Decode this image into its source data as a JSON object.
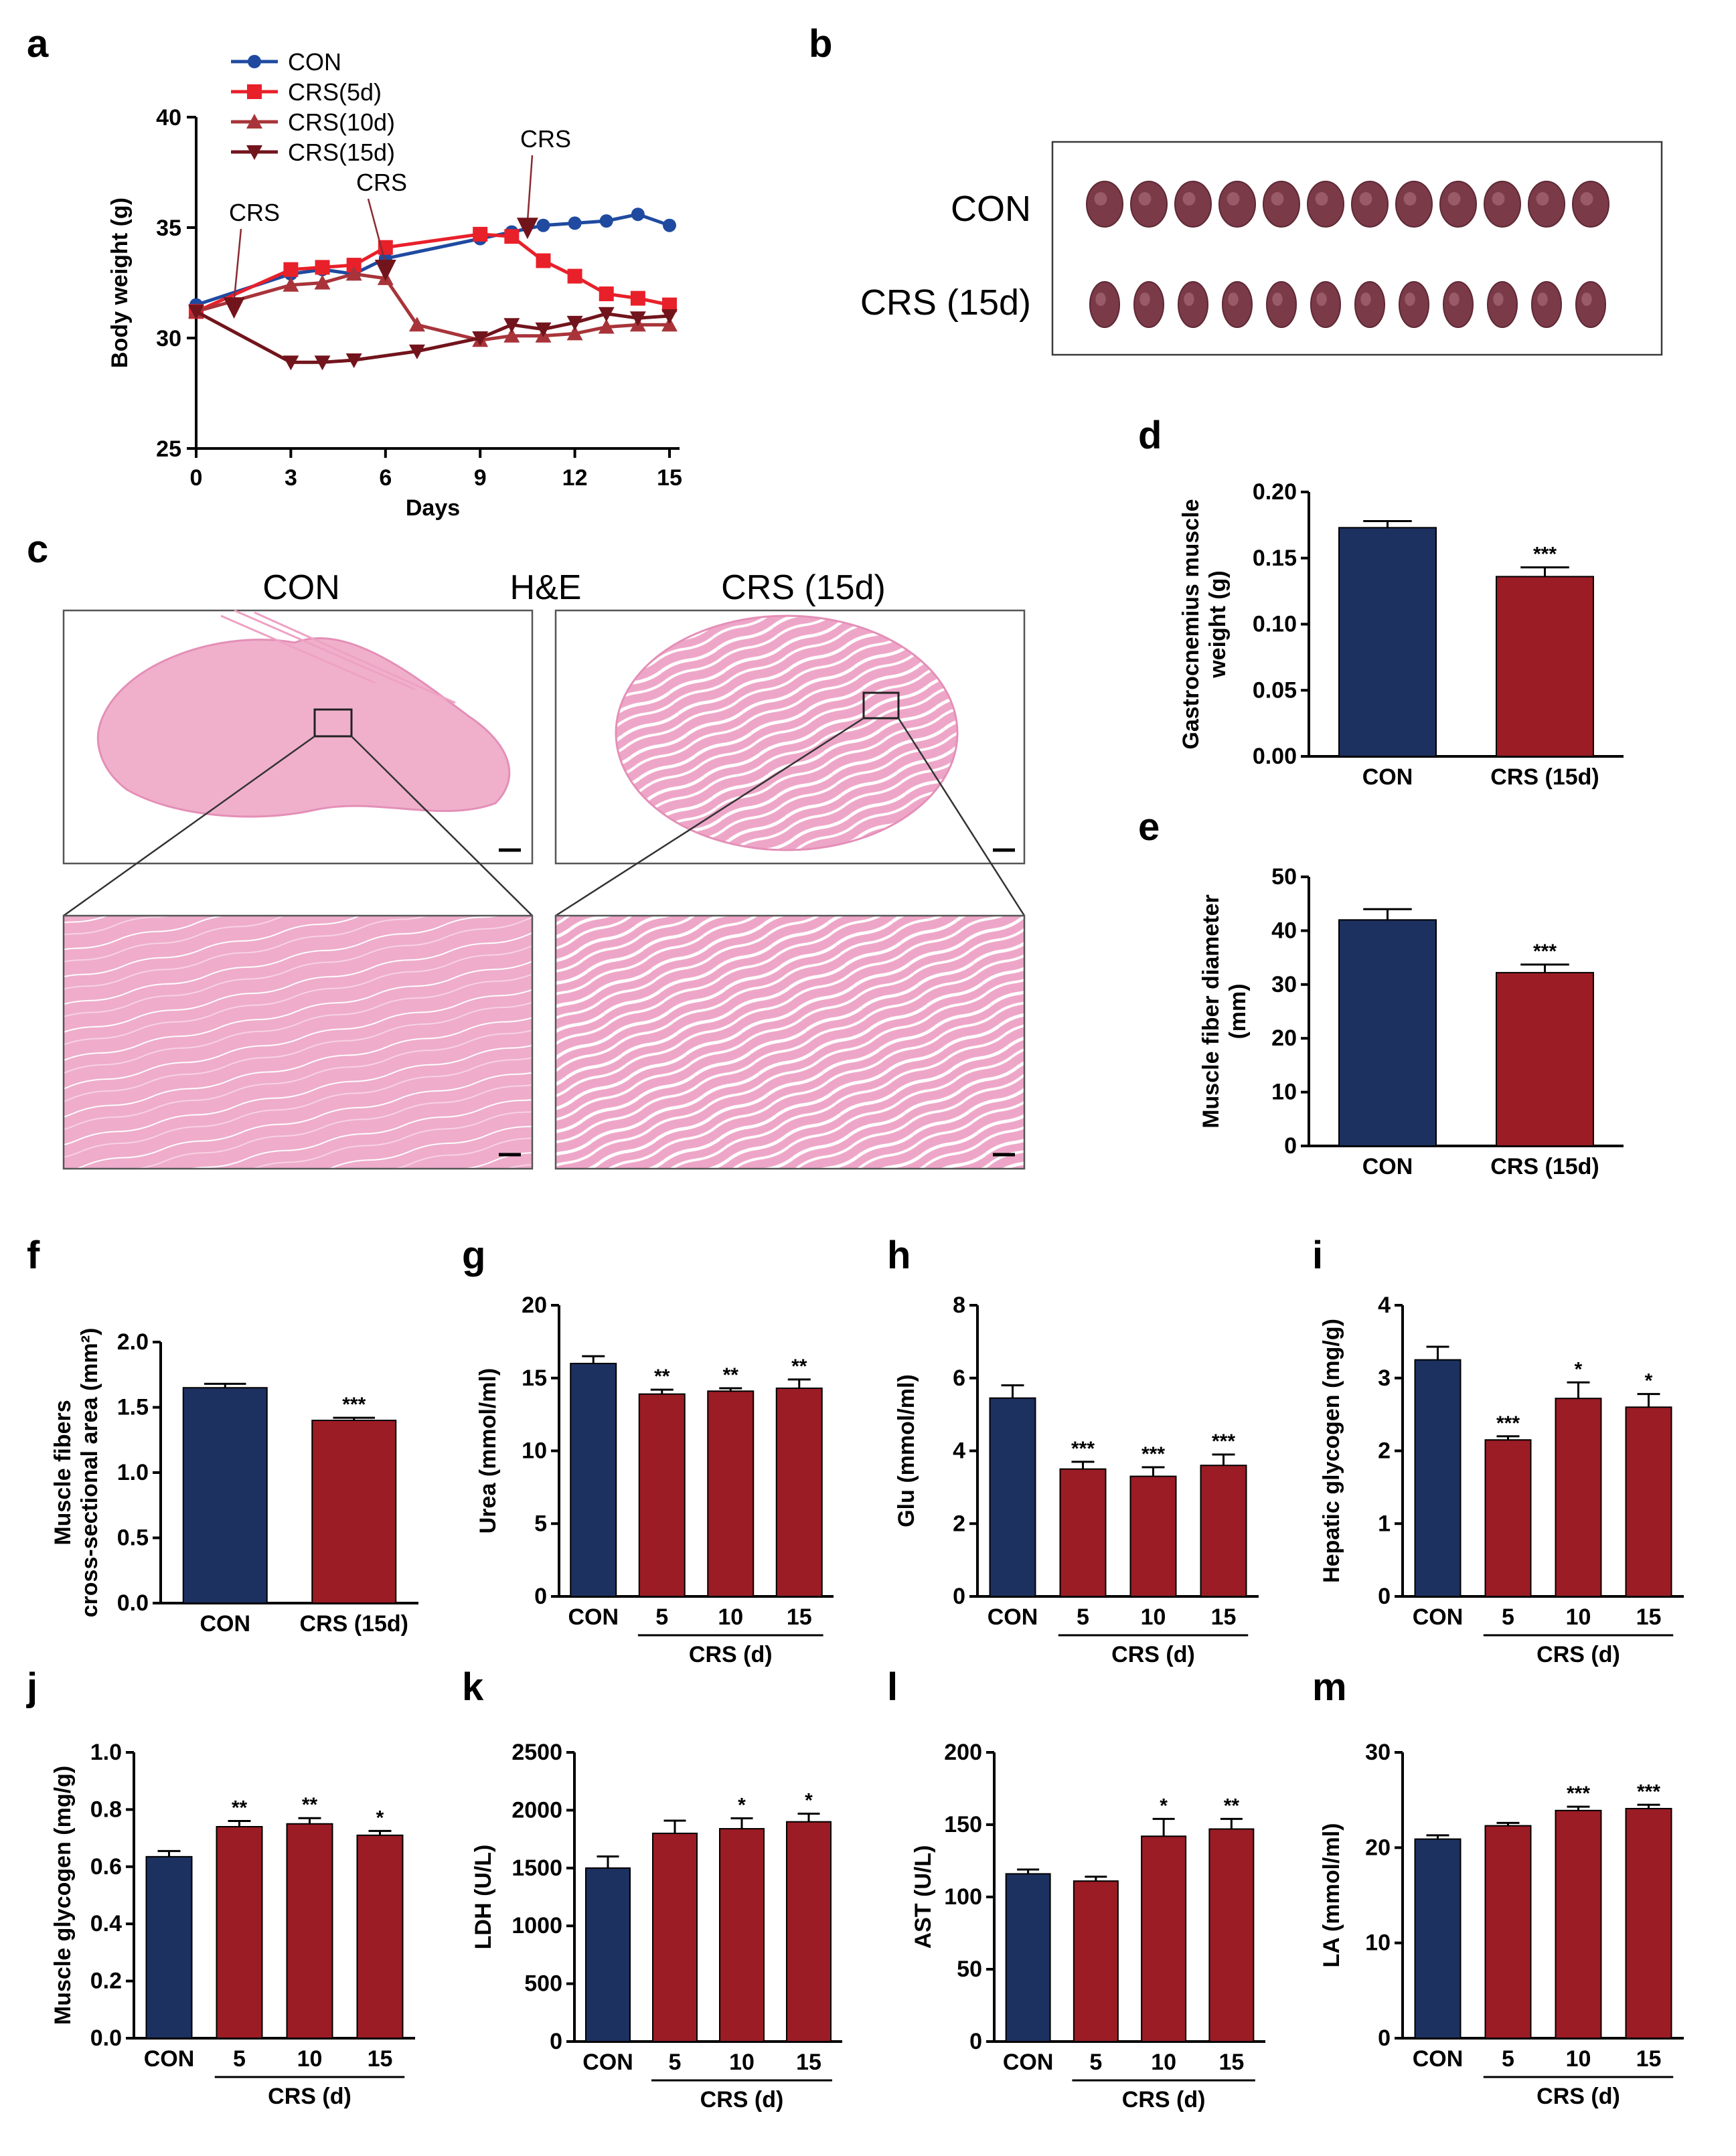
{
  "panels": {
    "a": "a",
    "b": "b",
    "c": "c",
    "d": "d",
    "e": "e",
    "f": "f",
    "g": "g",
    "h": "h",
    "i": "i",
    "j": "j",
    "k": "k",
    "l": "l",
    "m": "m"
  },
  "colors": {
    "con_bar": "#1c3160",
    "crs_bar": "#9b1c24",
    "con_line": "#1f4aa0",
    "crs5_line": "#e8202a",
    "crs10_line": "#a8343a",
    "crs15_line": "#72141c",
    "muscle": "#7a3a48",
    "stain": "#e8a0c0"
  },
  "panel_b": {
    "row1_label": "CON",
    "row2_label": "CRS (15d)",
    "row1_count": 12,
    "row2_count": 12
  },
  "panel_c": {
    "label_left": "CON",
    "label_center": "H&E",
    "label_right": "CRS (15d)"
  },
  "chart_data": [
    {
      "id": "a",
      "type": "line",
      "title": "",
      "xlabel": "Days",
      "ylabel": "Body weight (g)",
      "xlim": [
        0,
        15
      ],
      "ylim": [
        25,
        40
      ],
      "xticks": [
        0,
        3,
        6,
        9,
        12,
        15
      ],
      "yticks": [
        25,
        30,
        35,
        40
      ],
      "legend_position": "top-left",
      "series": [
        {
          "name": "CON",
          "marker": "circle",
          "color": "#1f4aa0",
          "x": [
            0,
            3,
            4,
            5,
            6,
            9,
            10,
            11,
            12,
            13,
            14,
            15
          ],
          "y": [
            31.5,
            32.9,
            33.1,
            32.9,
            33.6,
            34.5,
            34.8,
            35.1,
            35.2,
            35.3,
            35.6,
            35.1
          ]
        },
        {
          "name": "CRS(5d)",
          "marker": "square",
          "color": "#e8202a",
          "x": [
            0,
            3,
            4,
            5,
            6,
            9,
            10,
            11,
            12,
            13,
            14,
            15
          ],
          "y": [
            31.2,
            33.1,
            33.2,
            33.3,
            34.1,
            34.7,
            34.6,
            33.5,
            32.8,
            32.0,
            31.8,
            31.5
          ]
        },
        {
          "name": "CRS(10d)",
          "marker": "triangle-up",
          "color": "#a8343a",
          "x": [
            0,
            3,
            4,
            5,
            6,
            7,
            9,
            10,
            11,
            12,
            13,
            14,
            15
          ],
          "y": [
            31.2,
            32.4,
            32.5,
            32.9,
            32.7,
            30.6,
            29.9,
            30.1,
            30.1,
            30.2,
            30.5,
            30.6,
            30.6
          ]
        },
        {
          "name": "CRS(15d)",
          "marker": "triangle-down",
          "color": "#72141c",
          "x": [
            0,
            3,
            4,
            5,
            7,
            9,
            10,
            11,
            12,
            13,
            14,
            15
          ],
          "y": [
            31.2,
            28.9,
            28.9,
            29.0,
            29.4,
            30.0,
            30.6,
            30.4,
            30.7,
            31.1,
            30.9,
            31.0
          ]
        }
      ],
      "annotations": [
        {
          "text": "CRS",
          "x": 1.2,
          "y": 31.3
        },
        {
          "text": "CRS",
          "x": 6.0,
          "y": 33.0
        },
        {
          "text": "CRS",
          "x": 10.5,
          "y": 34.9
        }
      ]
    },
    {
      "id": "d",
      "type": "bar",
      "ylabel": "Gastrocnemius muscle weight (g)",
      "ylabel_lines": [
        "Gastrocnemius muscle",
        "weight (g)"
      ],
      "categories": [
        "CON",
        "CRS (15d)"
      ],
      "values": [
        0.173,
        0.136
      ],
      "errors": [
        0.005,
        0.007
      ],
      "sig": [
        "",
        "***"
      ],
      "ylim": [
        0,
        0.2
      ],
      "yticks": [
        "0.00",
        "0.05",
        "0.10",
        "0.15",
        "0.20"
      ]
    },
    {
      "id": "e",
      "type": "bar",
      "ylabel": "Muscle fiber diameter (mm)",
      "ylabel_lines": [
        "Muscle fiber diameter",
        "(mm)"
      ],
      "categories": [
        "CON",
        "CRS (15d)"
      ],
      "values": [
        42,
        32.2
      ],
      "errors": [
        2,
        1.5
      ],
      "sig": [
        "",
        "***"
      ],
      "ylim": [
        0,
        50
      ],
      "yticks": [
        "0",
        "10",
        "20",
        "30",
        "40",
        "50"
      ]
    },
    {
      "id": "f",
      "type": "bar",
      "ylabel": "Muscle fibers cross-sectional area (mm2)",
      "ylabel_lines": [
        "Muscle fibers",
        "cross-sectional area (mm²)"
      ],
      "categories": [
        "CON",
        "CRS (15d)"
      ],
      "values": [
        1.65,
        1.4
      ],
      "errors": [
        0.03,
        0.02
      ],
      "sig": [
        "",
        "***"
      ],
      "ylim": [
        0,
        2.0
      ],
      "yticks": [
        "0.0",
        "0.5",
        "1.0",
        "1.5",
        "2.0"
      ]
    },
    {
      "id": "g",
      "type": "bar",
      "ylabel": "Urea (mmol/ml)",
      "categories": [
        "CON",
        "5",
        "10",
        "15"
      ],
      "group_label": "CRS (d)",
      "values": [
        16.0,
        13.9,
        14.1,
        14.3
      ],
      "errors": [
        0.5,
        0.3,
        0.2,
        0.6
      ],
      "sig": [
        "",
        "**",
        "**",
        "**"
      ],
      "ylim": [
        0,
        20
      ],
      "yticks": [
        "0",
        "5",
        "10",
        "15",
        "20"
      ]
    },
    {
      "id": "h",
      "type": "bar",
      "ylabel": "Glu (mmol/ml)",
      "categories": [
        "CON",
        "5",
        "10",
        "15"
      ],
      "group_label": "CRS (d)",
      "values": [
        5.45,
        3.5,
        3.3,
        3.6
      ],
      "errors": [
        0.35,
        0.2,
        0.25,
        0.3
      ],
      "sig": [
        "",
        "***",
        "***",
        "***"
      ],
      "ylim": [
        0,
        8
      ],
      "yticks": [
        "0",
        "2",
        "4",
        "6",
        "8"
      ]
    },
    {
      "id": "i",
      "type": "bar",
      "ylabel": "Hepatic glycogen (mg/g)",
      "categories": [
        "CON",
        "5",
        "10",
        "15"
      ],
      "group_label": "CRS (d)",
      "values": [
        3.25,
        2.15,
        2.72,
        2.6
      ],
      "errors": [
        0.18,
        0.05,
        0.22,
        0.18
      ],
      "sig": [
        "",
        "***",
        "*",
        "*"
      ],
      "ylim": [
        0,
        4
      ],
      "yticks": [
        "0",
        "1",
        "2",
        "3",
        "4"
      ]
    },
    {
      "id": "j",
      "type": "bar",
      "ylabel": "Muscle glycogen (mg/g)",
      "categories": [
        "CON",
        "5",
        "10",
        "15"
      ],
      "group_label": "CRS (d)",
      "values": [
        0.635,
        0.74,
        0.75,
        0.71
      ],
      "errors": [
        0.02,
        0.02,
        0.02,
        0.015
      ],
      "sig": [
        "",
        "**",
        "**",
        "*"
      ],
      "ylim": [
        0,
        1.0
      ],
      "yticks": [
        "0.0",
        "0.2",
        "0.4",
        "0.6",
        "0.8",
        "1.0"
      ]
    },
    {
      "id": "k",
      "type": "bar",
      "ylabel": "LDH (U/L)",
      "categories": [
        "CON",
        "5",
        "10",
        "15"
      ],
      "group_label": "CRS (d)",
      "values": [
        1500,
        1800,
        1840,
        1900
      ],
      "errors": [
        100,
        110,
        90,
        70
      ],
      "sig": [
        "",
        "",
        "*",
        "*"
      ],
      "ylim": [
        0,
        2500
      ],
      "yticks": [
        "0",
        "500",
        "1000",
        "1500",
        "2000",
        "2500"
      ]
    },
    {
      "id": "l",
      "type": "bar",
      "ylabel": "AST (U/L)",
      "categories": [
        "CON",
        "5",
        "10",
        "15"
      ],
      "group_label": "CRS (d)",
      "values": [
        116,
        111,
        142,
        147
      ],
      "errors": [
        3,
        3,
        12,
        7
      ],
      "sig": [
        "",
        "",
        "*",
        "**"
      ],
      "ylim": [
        0,
        200
      ],
      "yticks": [
        "0",
        "50",
        "100",
        "150",
        "200"
      ]
    },
    {
      "id": "m",
      "type": "bar",
      "ylabel": "LA (mmol/ml)",
      "categories": [
        "CON",
        "5",
        "10",
        "15"
      ],
      "group_label": "CRS (d)",
      "values": [
        20.9,
        22.3,
        23.9,
        24.1
      ],
      "errors": [
        0.4,
        0.3,
        0.4,
        0.4
      ],
      "sig": [
        "",
        "",
        "***",
        "***"
      ],
      "ylim": [
        0,
        30
      ],
      "yticks": [
        "0",
        "10",
        "20",
        "30"
      ]
    }
  ]
}
